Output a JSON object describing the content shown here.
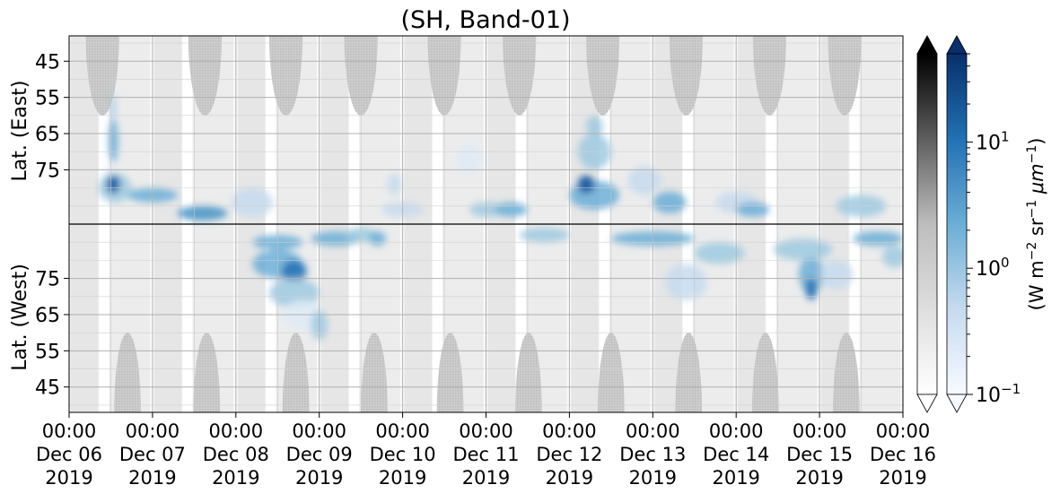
{
  "chart_data": {
    "type": "heatmap",
    "title": "(SH, Band-01)",
    "x_tick_labels": [
      {
        "time": "00:00",
        "date": "Dec 06",
        "year": "2019"
      },
      {
        "time": "00:00",
        "date": "Dec 07",
        "year": "2019"
      },
      {
        "time": "00:00",
        "date": "Dec 08",
        "year": "2019"
      },
      {
        "time": "00:00",
        "date": "Dec 09",
        "year": "2019"
      },
      {
        "time": "00:00",
        "date": "Dec 10",
        "year": "2019"
      },
      {
        "time": "00:00",
        "date": "Dec 11",
        "year": "2019"
      },
      {
        "time": "00:00",
        "date": "Dec 12",
        "year": "2019"
      },
      {
        "time": "00:00",
        "date": "Dec 13",
        "year": "2019"
      },
      {
        "time": "00:00",
        "date": "Dec 14",
        "year": "2019"
      },
      {
        "time": "00:00",
        "date": "Dec 15",
        "year": "2019"
      },
      {
        "time": "00:00",
        "date": "Dec 16",
        "year": "2019"
      }
    ],
    "x_range": [
      "2019-12-06 00:00",
      "2019-12-16 00:00"
    ],
    "y_axis_upper_label": "Lat. (East)",
    "y_axis_lower_label": "Lat. (West)",
    "y_ticks_upper": [
      45,
      55,
      65,
      75
    ],
    "y_ticks_lower": [
      75,
      65,
      55,
      45
    ],
    "y_range_deg": [
      38,
      90
    ],
    "grid": true,
    "colorbar": {
      "label": "(W m$^{-2}$ sr$^{-1}$ $\\mu$m$^{-1}$)",
      "label_main": "(W m",
      "label_exp1": "−2",
      "label_sr": " sr",
      "label_exp2": "−1",
      "label_unit": " μm",
      "label_exp3": "−1",
      "label_close": ")",
      "scale": "log",
      "range": [
        0.1,
        50
      ],
      "ticks": [
        {
          "base": "10",
          "exp": "1",
          "value": 10
        },
        {
          "base": "10",
          "exp": "0",
          "value": 1
        },
        {
          "base": "10",
          "exp": "−1",
          "value": 0.1
        }
      ],
      "extend": "both",
      "colormaps": [
        "Greys",
        "Blues"
      ]
    },
    "colors": {
      "grey_dark": "#c4c4c4",
      "blue_dark": "#08306b",
      "blue_mid": "#4a98c9",
      "blue_light": "#c6dbef"
    }
  }
}
